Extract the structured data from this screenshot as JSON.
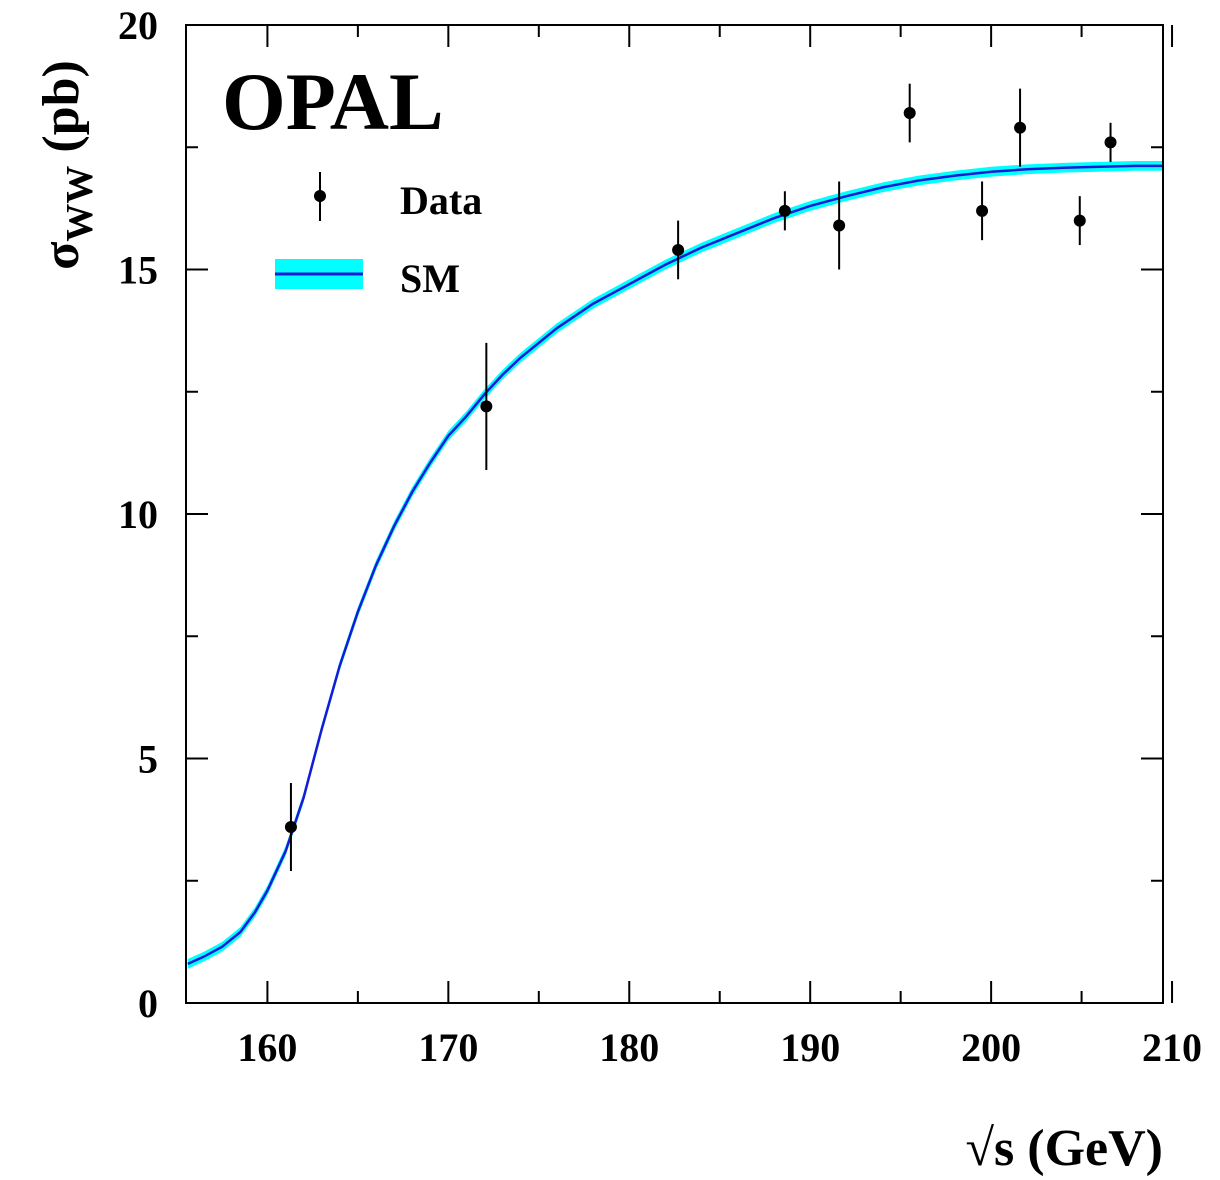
{
  "chart_data": {
    "type": "scatter",
    "experiment_label": "OPAL",
    "xlabel": "√s (GeV)",
    "ylabel": {
      "main": "σ",
      "subscript": "WW",
      "unit": "(pb)"
    },
    "xlim": [
      155.5,
      209.5
    ],
    "ylim": [
      0,
      20
    ],
    "x_ticks": [
      160,
      170,
      180,
      190,
      200,
      210
    ],
    "y_ticks": [
      0,
      5,
      10,
      15,
      20
    ],
    "grid": false,
    "legend": {
      "placement": "top-left",
      "entries": [
        {
          "label": "Data",
          "kind": "marker",
          "color": "#000000"
        },
        {
          "label": "SM",
          "kind": "band",
          "line_color": "#1a1ad6",
          "band_color": "#00ffff"
        }
      ]
    },
    "series": [
      {
        "name": "Data",
        "kind": "points",
        "x": [
          161.3,
          172.1,
          182.7,
          188.6,
          191.6,
          195.5,
          199.5,
          201.6,
          204.9,
          206.6
        ],
        "y": [
          3.6,
          12.2,
          15.4,
          16.2,
          15.9,
          18.2,
          16.2,
          17.9,
          16.0,
          17.6
        ],
        "y_err": [
          0.9,
          1.3,
          0.6,
          0.4,
          0.9,
          0.6,
          0.6,
          0.8,
          0.5,
          0.4
        ]
      },
      {
        "name": "SM",
        "kind": "line",
        "x": [
          155.6,
          156.5,
          157.5,
          158.5,
          159.3,
          160.0,
          161.0,
          162.0,
          163.0,
          164.0,
          165.0,
          166.0,
          167.0,
          168.0,
          169.0,
          170.0,
          171.0,
          172.0,
          173.0,
          174.0,
          175.0,
          176.0,
          177.0,
          178.0,
          180.0,
          182.0,
          184.0,
          186.0,
          188.0,
          190.0,
          192.0,
          194.0,
          196.0,
          198.0,
          200.0,
          202.0,
          204.0,
          206.0,
          208.0,
          209.5
        ],
        "y": [
          0.8,
          0.95,
          1.15,
          1.45,
          1.85,
          2.3,
          3.1,
          4.2,
          5.6,
          6.9,
          8.0,
          8.95,
          9.75,
          10.45,
          11.05,
          11.6,
          12.0,
          12.45,
          12.85,
          13.2,
          13.5,
          13.8,
          14.05,
          14.3,
          14.7,
          15.1,
          15.45,
          15.75,
          16.05,
          16.3,
          16.5,
          16.68,
          16.82,
          16.92,
          17.0,
          17.05,
          17.08,
          17.1,
          17.12,
          17.12
        ],
        "band_halfwidth": 0.1
      }
    ]
  }
}
